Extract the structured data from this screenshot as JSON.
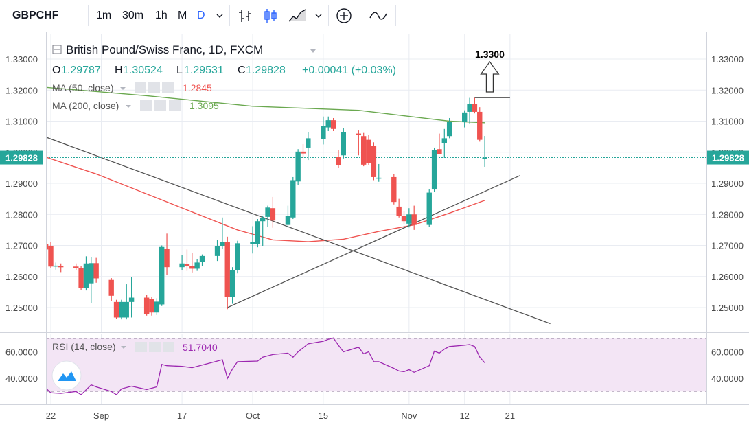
{
  "toolbar": {
    "symbol": "GBPCHF",
    "intervals": [
      "1m",
      "30m",
      "1h",
      "M",
      "D"
    ],
    "active_interval": "D",
    "dropdown_icon": "chevron-down-icon",
    "chart_style_icons": [
      "bar-style-icon",
      "candle-style-icon",
      "area-style-icon"
    ],
    "compare_icon": "plus-circle-icon",
    "indicators_icon": "indicators-wave-icon"
  },
  "legend": {
    "title": "British Pound/Swiss Franc, 1D, FXCM",
    "open_label": "O",
    "open": "1.29787",
    "high_label": "H",
    "high": "1.30524",
    "low_label": "L",
    "low": "1.29531",
    "close_label": "C",
    "close": "1.29828",
    "change": "+0.00041 (+0.03%)",
    "ma50_label": "MA (50, close)",
    "ma50_value": "1.2845",
    "ma200_label": "MA (200, close)",
    "ma200_value": "1.3095",
    "rsi_label": "RSI (14, close)",
    "rsi_value": "51.7040"
  },
  "annotation": {
    "label": "1.3300"
  },
  "price_badge": "1.29828",
  "colors": {
    "up": "#26a69a",
    "down": "#ef5350",
    "ma50": "#ef5350",
    "ma200": "#6aa84f",
    "rsi_line": "#9c27b0",
    "rsi_band": "#f3e5f5",
    "grid": "#e9ecf2",
    "trendline": "#555555",
    "price_badge": "#26a69a"
  },
  "chart_data": [
    {
      "type": "candlestick",
      "symbol": "GBPCHF",
      "title": "British Pound/Swiss Franc, 1D, FXCM",
      "x_labels": [
        "22",
        "Sep",
        "17",
        "Oct",
        "15",
        "Nov",
        "12",
        "21"
      ],
      "x_label_dates": [
        "2018-08-22",
        "2018-09-01",
        "2018-09-17",
        "2018-10-01",
        "2018-10-15",
        "2018-11-01",
        "2018-11-12",
        "2018-11-21"
      ],
      "y_ticks": [
        "1.25000",
        "1.26000",
        "1.27000",
        "1.28000",
        "1.29000",
        "1.30000",
        "1.31000",
        "1.32000",
        "1.33000"
      ],
      "ylim": [
        1.2435,
        1.3345
      ],
      "grid": true,
      "candles": [
        {
          "date": "2018-08-21",
          "o": 1.2705,
          "h": 1.2714,
          "l": 1.2658,
          "c": 1.2687
        },
        {
          "date": "2018-08-22",
          "o": 1.2697,
          "h": 1.271,
          "l": 1.2626,
          "c": 1.2632
        },
        {
          "date": "2018-08-23",
          "o": 1.2632,
          "h": 1.2645,
          "l": 1.2622,
          "c": 1.2635
        },
        {
          "date": "2018-08-24",
          "o": 1.2633,
          "h": 1.2642,
          "l": 1.2614,
          "c": 1.2632
        },
        {
          "date": "2018-08-27",
          "o": 1.2632,
          "h": 1.2642,
          "l": 1.262,
          "c": 1.2628
        },
        {
          "date": "2018-08-28",
          "o": 1.2628,
          "h": 1.2633,
          "l": 1.2557,
          "c": 1.2562
        },
        {
          "date": "2018-08-29",
          "o": 1.2562,
          "h": 1.2665,
          "l": 1.2555,
          "c": 1.2642
        },
        {
          "date": "2018-08-30",
          "o": 1.2578,
          "h": 1.2662,
          "l": 1.2515,
          "c": 1.2643
        },
        {
          "date": "2018-08-31",
          "o": 1.2643,
          "h": 1.266,
          "l": 1.258,
          "c": 1.2594
        },
        {
          "date": "2018-09-03",
          "o": 1.2589,
          "h": 1.2595,
          "l": 1.252,
          "c": 1.2538
        },
        {
          "date": "2018-09-04",
          "o": 1.2518,
          "h": 1.2525,
          "l": 1.2464,
          "c": 1.2468
        },
        {
          "date": "2018-09-05",
          "o": 1.2468,
          "h": 1.2525,
          "l": 1.2462,
          "c": 1.2518
        },
        {
          "date": "2018-09-06",
          "o": 1.2468,
          "h": 1.2575,
          "l": 1.2462,
          "c": 1.2518
        },
        {
          "date": "2018-09-07",
          "o": 1.2518,
          "h": 1.2598,
          "l": 1.2468,
          "c": 1.2532
        },
        {
          "date": "2018-09-10",
          "o": 1.2532,
          "h": 1.254,
          "l": 1.2474,
          "c": 1.2479
        },
        {
          "date": "2018-09-11",
          "o": 1.2527,
          "h": 1.2535,
          "l": 1.2474,
          "c": 1.2484
        },
        {
          "date": "2018-09-12",
          "o": 1.2484,
          "h": 1.253,
          "l": 1.2476,
          "c": 1.2519
        },
        {
          "date": "2018-09-13",
          "o": 1.251,
          "h": 1.27,
          "l": 1.2505,
          "c": 1.2695
        },
        {
          "date": "2018-09-14",
          "o": 1.269,
          "h": 1.2738,
          "l": 1.2604,
          "c": 1.263
        },
        {
          "date": "2018-09-17",
          "o": 1.263,
          "h": 1.2668,
          "l": 1.262,
          "c": 1.2642
        },
        {
          "date": "2018-09-18",
          "o": 1.2641,
          "h": 1.2687,
          "l": 1.2618,
          "c": 1.2633
        },
        {
          "date": "2018-09-19",
          "o": 1.2633,
          "h": 1.2676,
          "l": 1.2613,
          "c": 1.2625
        },
        {
          "date": "2018-09-20",
          "o": 1.2625,
          "h": 1.2655,
          "l": 1.2618,
          "c": 1.2645
        },
        {
          "date": "2018-09-21",
          "o": 1.2647,
          "h": 1.2671,
          "l": 1.2634,
          "c": 1.2666
        },
        {
          "date": "2018-09-24",
          "o": 1.2666,
          "h": 1.2718,
          "l": 1.265,
          "c": 1.2698
        },
        {
          "date": "2018-09-25",
          "o": 1.2698,
          "h": 1.279,
          "l": 1.269,
          "c": 1.2712
        },
        {
          "date": "2018-09-26",
          "o": 1.2712,
          "h": 1.2728,
          "l": 1.2495,
          "c": 1.2535
        },
        {
          "date": "2018-09-27",
          "o": 1.2535,
          "h": 1.263,
          "l": 1.2512,
          "c": 1.262
        },
        {
          "date": "2018-09-28",
          "o": 1.262,
          "h": 1.2715,
          "l": 1.261,
          "c": 1.2707
        },
        {
          "date": "2018-10-01",
          "o": 1.2705,
          "h": 1.2762,
          "l": 1.2674,
          "c": 1.2712
        },
        {
          "date": "2018-10-02",
          "o": 1.2705,
          "h": 1.2785,
          "l": 1.2694,
          "c": 1.2778
        },
        {
          "date": "2018-10-03",
          "o": 1.2778,
          "h": 1.2795,
          "l": 1.2698,
          "c": 1.2788
        },
        {
          "date": "2018-10-04",
          "o": 1.2792,
          "h": 1.2828,
          "l": 1.276,
          "c": 1.2822
        },
        {
          "date": "2018-10-05",
          "o": 1.282,
          "h": 1.2856,
          "l": 1.2757,
          "c": 1.278
        },
        {
          "date": "2018-10-08",
          "o": 1.2766,
          "h": 1.2828,
          "l": 1.2758,
          "c": 1.2794
        },
        {
          "date": "2018-10-09",
          "o": 1.279,
          "h": 1.292,
          "l": 1.2785,
          "c": 1.291
        },
        {
          "date": "2018-10-10",
          "o": 1.2906,
          "h": 1.301,
          "l": 1.2895,
          "c": 1.3002
        },
        {
          "date": "2018-10-11",
          "o": 1.3002,
          "h": 1.3026,
          "l": 1.2982,
          "c": 1.2996
        },
        {
          "date": "2018-10-12",
          "o": 1.3015,
          "h": 1.3065,
          "l": 1.2975,
          "c": 1.3045
        },
        {
          "date": "2018-10-15",
          "o": 1.3042,
          "h": 1.3115,
          "l": 1.3025,
          "c": 1.3085
        },
        {
          "date": "2018-10-16",
          "o": 1.308,
          "h": 1.3115,
          "l": 1.3068,
          "c": 1.3103
        },
        {
          "date": "2018-10-17",
          "o": 1.3103,
          "h": 1.311,
          "l": 1.3068,
          "c": 1.3075
        },
        {
          "date": "2018-10-18",
          "o": 1.2985,
          "h": 1.3008,
          "l": 1.295,
          "c": 1.2958
        },
        {
          "date": "2018-10-19",
          "o": 1.299,
          "h": 1.3078,
          "l": 1.298,
          "c": 1.3065
        },
        {
          "date": "2018-10-22",
          "o": 1.306,
          "h": 1.307,
          "l": 1.299,
          "c": 1.3055
        },
        {
          "date": "2018-10-23",
          "o": 1.3052,
          "h": 1.3062,
          "l": 1.2955,
          "c": 1.296
        },
        {
          "date": "2018-10-24",
          "o": 1.304,
          "h": 1.3055,
          "l": 1.2958,
          "c": 1.2965
        },
        {
          "date": "2018-10-25",
          "o": 1.302,
          "h": 1.3032,
          "l": 1.291,
          "c": 1.292
        },
        {
          "date": "2018-10-26",
          "o": 1.2918,
          "h": 1.2962,
          "l": 1.2905,
          "c": 1.2918
        },
        {
          "date": "2018-10-29",
          "o": 1.292,
          "h": 1.293,
          "l": 1.2832,
          "c": 1.284
        },
        {
          "date": "2018-10-30",
          "o": 1.2825,
          "h": 1.285,
          "l": 1.279,
          "c": 1.2795
        },
        {
          "date": "2018-10-31",
          "o": 1.2795,
          "h": 1.281,
          "l": 1.2768,
          "c": 1.2778
        },
        {
          "date": "2018-11-01",
          "o": 1.277,
          "h": 1.282,
          "l": 1.2758,
          "c": 1.28
        },
        {
          "date": "2018-11-02",
          "o": 1.28,
          "h": 1.2828,
          "l": 1.275,
          "c": 1.2766
        },
        {
          "date": "2018-11-05",
          "o": 1.2766,
          "h": 1.288,
          "l": 1.276,
          "c": 1.287
        },
        {
          "date": "2018-11-06",
          "o": 1.288,
          "h": 1.3015,
          "l": 1.2872,
          "c": 1.3008
        },
        {
          "date": "2018-11-07",
          "o": 1.301,
          "h": 1.306,
          "l": 1.2995,
          "c": 1.2995
        },
        {
          "date": "2018-11-08",
          "o": 1.303,
          "h": 1.3075,
          "l": 1.2982,
          "c": 1.3045
        },
        {
          "date": "2018-11-09",
          "o": 1.3052,
          "h": 1.311,
          "l": 1.3045,
          "c": 1.3098
        },
        {
          "date": "2018-11-12",
          "o": 1.3098,
          "h": 1.3135,
          "l": 1.308,
          "c": 1.3128
        },
        {
          "date": "2018-11-13",
          "o": 1.313,
          "h": 1.3175,
          "l": 1.3093,
          "c": 1.3155
        },
        {
          "date": "2018-11-14",
          "o": 1.3155,
          "h": 1.3175,
          "l": 1.3125,
          "c": 1.313
        },
        {
          "date": "2018-11-15",
          "o": 1.313,
          "h": 1.3145,
          "l": 1.3034,
          "c": 1.304
        },
        {
          "date": "2018-11-16",
          "o": 1.29787,
          "h": 1.30524,
          "l": 1.29531,
          "c": 1.29828
        }
      ],
      "overlays": [
        {
          "name": "MA (50, close)",
          "type": "line",
          "points": [
            [
              "2018-08-20",
              1.299
            ],
            [
              "2018-08-31",
              1.293
            ],
            [
              "2018-09-14",
              1.284
            ],
            [
              "2018-09-28",
              1.275
            ],
            [
              "2018-10-05",
              1.2718
            ],
            [
              "2018-10-12",
              1.2712
            ],
            [
              "2018-10-19",
              1.272
            ],
            [
              "2018-10-26",
              1.2745
            ],
            [
              "2018-11-02",
              1.2766
            ],
            [
              "2018-11-09",
              1.2804
            ],
            [
              "2018-11-16",
              1.2845
            ]
          ]
        },
        {
          "name": "MA (200, close)",
          "type": "line",
          "points": [
            [
              "2018-08-20",
              1.321
            ],
            [
              "2018-09-10",
              1.3182
            ],
            [
              "2018-10-01",
              1.3148
            ],
            [
              "2018-10-22",
              1.3135
            ],
            [
              "2018-11-09",
              1.31
            ],
            [
              "2018-11-16",
              1.3095
            ]
          ]
        },
        {
          "name": "descending trendline",
          "type": "line",
          "points": [
            [
              "2018-08-20",
              1.3055
            ],
            [
              "2018-11-29",
              1.2448
            ]
          ]
        },
        {
          "name": "ascending trendline",
          "type": "line",
          "points": [
            [
              "2018-09-26",
              1.25
            ],
            [
              "2018-11-23",
              1.2925
            ]
          ]
        },
        {
          "name": "resistance",
          "type": "line",
          "points": [
            [
              "2018-11-14",
              1.3176
            ],
            [
              "2018-11-21",
              1.3176
            ]
          ]
        }
      ],
      "annotations": [
        {
          "text": "1.3300",
          "date": "2018-11-17",
          "value": 1.33,
          "shape": "up-arrow"
        }
      ],
      "last_price": 1.29828
    },
    {
      "type": "line",
      "title": "RSI (14, close)",
      "ylim": [
        26,
        72
      ],
      "y_ticks": [
        "40.0000",
        "60.0000"
      ],
      "band": [
        30,
        70
      ],
      "series": [
        {
          "name": "RSI (14, close)",
          "points": [
            [
              "2018-08-20",
              33.5
            ],
            [
              "2018-08-21",
              32.5
            ],
            [
              "2018-08-22",
              29
            ],
            [
              "2018-08-24",
              28.5
            ],
            [
              "2018-08-27",
              30
            ],
            [
              "2018-08-28",
              27.5
            ],
            [
              "2018-08-30",
              35
            ],
            [
              "2018-08-31",
              33.5
            ],
            [
              "2018-09-03",
              30
            ],
            [
              "2018-09-04",
              27.5
            ],
            [
              "2018-09-05",
              32
            ],
            [
              "2018-09-07",
              34
            ],
            [
              "2018-09-10",
              31.5
            ],
            [
              "2018-09-12",
              33.5
            ],
            [
              "2018-09-13",
              50.5
            ],
            [
              "2018-09-14",
              49.5
            ],
            [
              "2018-09-17",
              49
            ],
            [
              "2018-09-19",
              48
            ],
            [
              "2018-09-21",
              50
            ],
            [
              "2018-09-24",
              53
            ],
            [
              "2018-09-25",
              54
            ],
            [
              "2018-09-26",
              40
            ],
            [
              "2018-09-27",
              47
            ],
            [
              "2018-09-28",
              52.5
            ],
            [
              "2018-10-02",
              53
            ],
            [
              "2018-10-03",
              56
            ],
            [
              "2018-10-05",
              58
            ],
            [
              "2018-10-08",
              59
            ],
            [
              "2018-10-09",
              56
            ],
            [
              "2018-10-10",
              60
            ],
            [
              "2018-10-11",
              63
            ],
            [
              "2018-10-12",
              66
            ],
            [
              "2018-10-15",
              68
            ],
            [
              "2018-10-16",
              69.5
            ],
            [
              "2018-10-17",
              70.5
            ],
            [
              "2018-10-18",
              65
            ],
            [
              "2018-10-19",
              60
            ],
            [
              "2018-10-22",
              63.5
            ],
            [
              "2018-10-23",
              58.5
            ],
            [
              "2018-10-24",
              60
            ],
            [
              "2018-10-25",
              52.5
            ],
            [
              "2018-10-26",
              52.5
            ],
            [
              "2018-10-29",
              47.5
            ],
            [
              "2018-10-30",
              45.5
            ],
            [
              "2018-10-31",
              45
            ],
            [
              "2018-11-01",
              46.5
            ],
            [
              "2018-11-02",
              44.5
            ],
            [
              "2018-11-05",
              49.5
            ],
            [
              "2018-11-06",
              60.5
            ],
            [
              "2018-11-07",
              59
            ],
            [
              "2018-11-08",
              62
            ],
            [
              "2018-11-09",
              64
            ],
            [
              "2018-11-12",
              65
            ],
            [
              "2018-11-13",
              65.5
            ],
            [
              "2018-11-14",
              64
            ],
            [
              "2018-11-15",
              56
            ],
            [
              "2018-11-16",
              51.704
            ]
          ]
        }
      ]
    }
  ]
}
